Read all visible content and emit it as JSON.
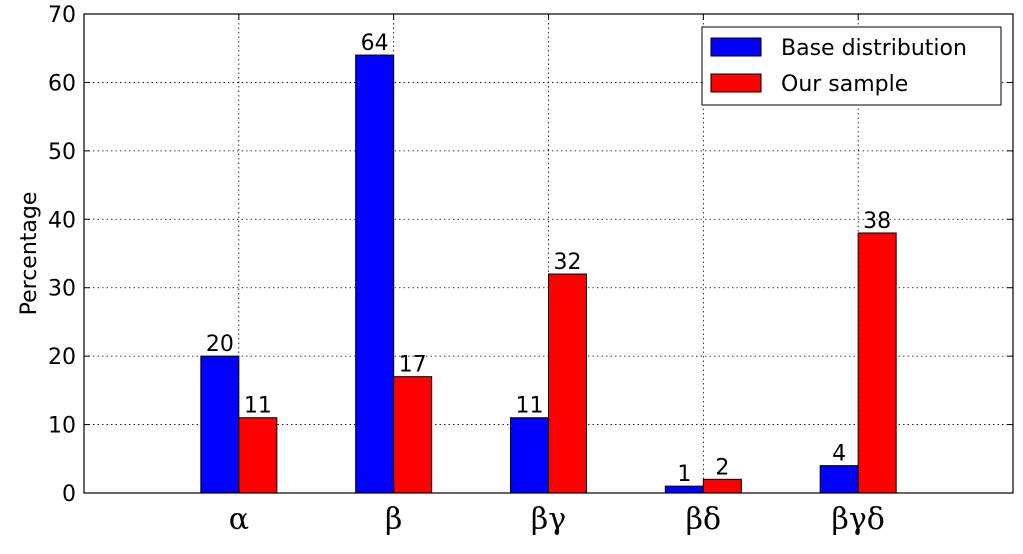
{
  "chart_data": {
    "type": "bar",
    "categories": [
      "α",
      "β",
      "βγ",
      "βδ",
      "βγδ"
    ],
    "series": [
      {
        "name": "Base distribution",
        "values": [
          20,
          64,
          11,
          1,
          4
        ],
        "color": "#0000ff"
      },
      {
        "name": "Our sample",
        "values": [
          11,
          17,
          32,
          2,
          38
        ],
        "color": "#ff0000"
      }
    ],
    "ylabel": "Percentage",
    "xlabel": "",
    "ylim": [
      0,
      70
    ],
    "yticks": [
      0,
      10,
      20,
      30,
      40,
      50,
      60,
      70
    ],
    "grid": true,
    "legend_position": "top-right",
    "data_labels": true
  }
}
